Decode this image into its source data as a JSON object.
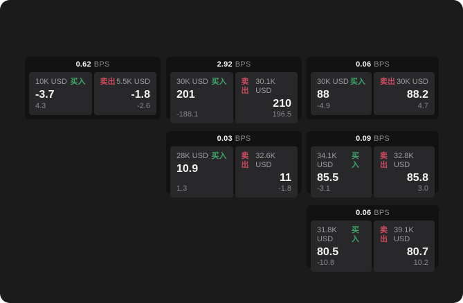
{
  "labels": {
    "bps_suffix": "BPS",
    "buy": "买入",
    "sell": "卖出"
  },
  "colors": {
    "page_bg": "#1b1b1c",
    "card_bg": "#121213",
    "panel_bg": "#28282a",
    "text_primary": "#f2f2f2",
    "text_muted": "#9c9c9e",
    "text_dim": "#87878a",
    "buy_green": "#3fa36a",
    "sell_red": "#cc4a5f"
  },
  "cards": [
    {
      "bps": "0.62",
      "col": 1,
      "row": 1,
      "buy": {
        "amount": "10K USD",
        "value": "-3.7",
        "delta": "4.3"
      },
      "sell": {
        "amount": "5.5K USD",
        "value": "-1.8",
        "delta": "-2.6"
      }
    },
    {
      "bps": "2.92",
      "col": 2,
      "row": 1,
      "buy": {
        "amount": "30K USD",
        "value": "201",
        "delta": "-188.1"
      },
      "sell": {
        "amount": "30.1K USD",
        "value": "210",
        "delta": "196.5"
      }
    },
    {
      "bps": "0.06",
      "col": 3,
      "row": 1,
      "buy": {
        "amount": "30K USD",
        "value": "88",
        "delta": "-4.9"
      },
      "sell": {
        "amount": "30K USD",
        "value": "88.2",
        "delta": "4.7"
      }
    },
    {
      "bps": "0.03",
      "col": 2,
      "row": 2,
      "buy": {
        "amount": "28K USD",
        "value": "10.9",
        "delta": "1.3"
      },
      "sell": {
        "amount": "32.6K USD",
        "value": "11",
        "delta": "-1.8"
      }
    },
    {
      "bps": "0.09",
      "col": 3,
      "row": 2,
      "buy": {
        "amount": "34.1K USD",
        "value": "85.5",
        "delta": "-3.1"
      },
      "sell": {
        "amount": "32.8K USD",
        "value": "85.8",
        "delta": "3.0"
      }
    },
    {
      "bps": "0.06",
      "col": 3,
      "row": 3,
      "buy": {
        "amount": "31.8K USD",
        "value": "80.5",
        "delta": "-10.8"
      },
      "sell": {
        "amount": "39.1K USD",
        "value": "80.7",
        "delta": "10.2"
      }
    }
  ]
}
